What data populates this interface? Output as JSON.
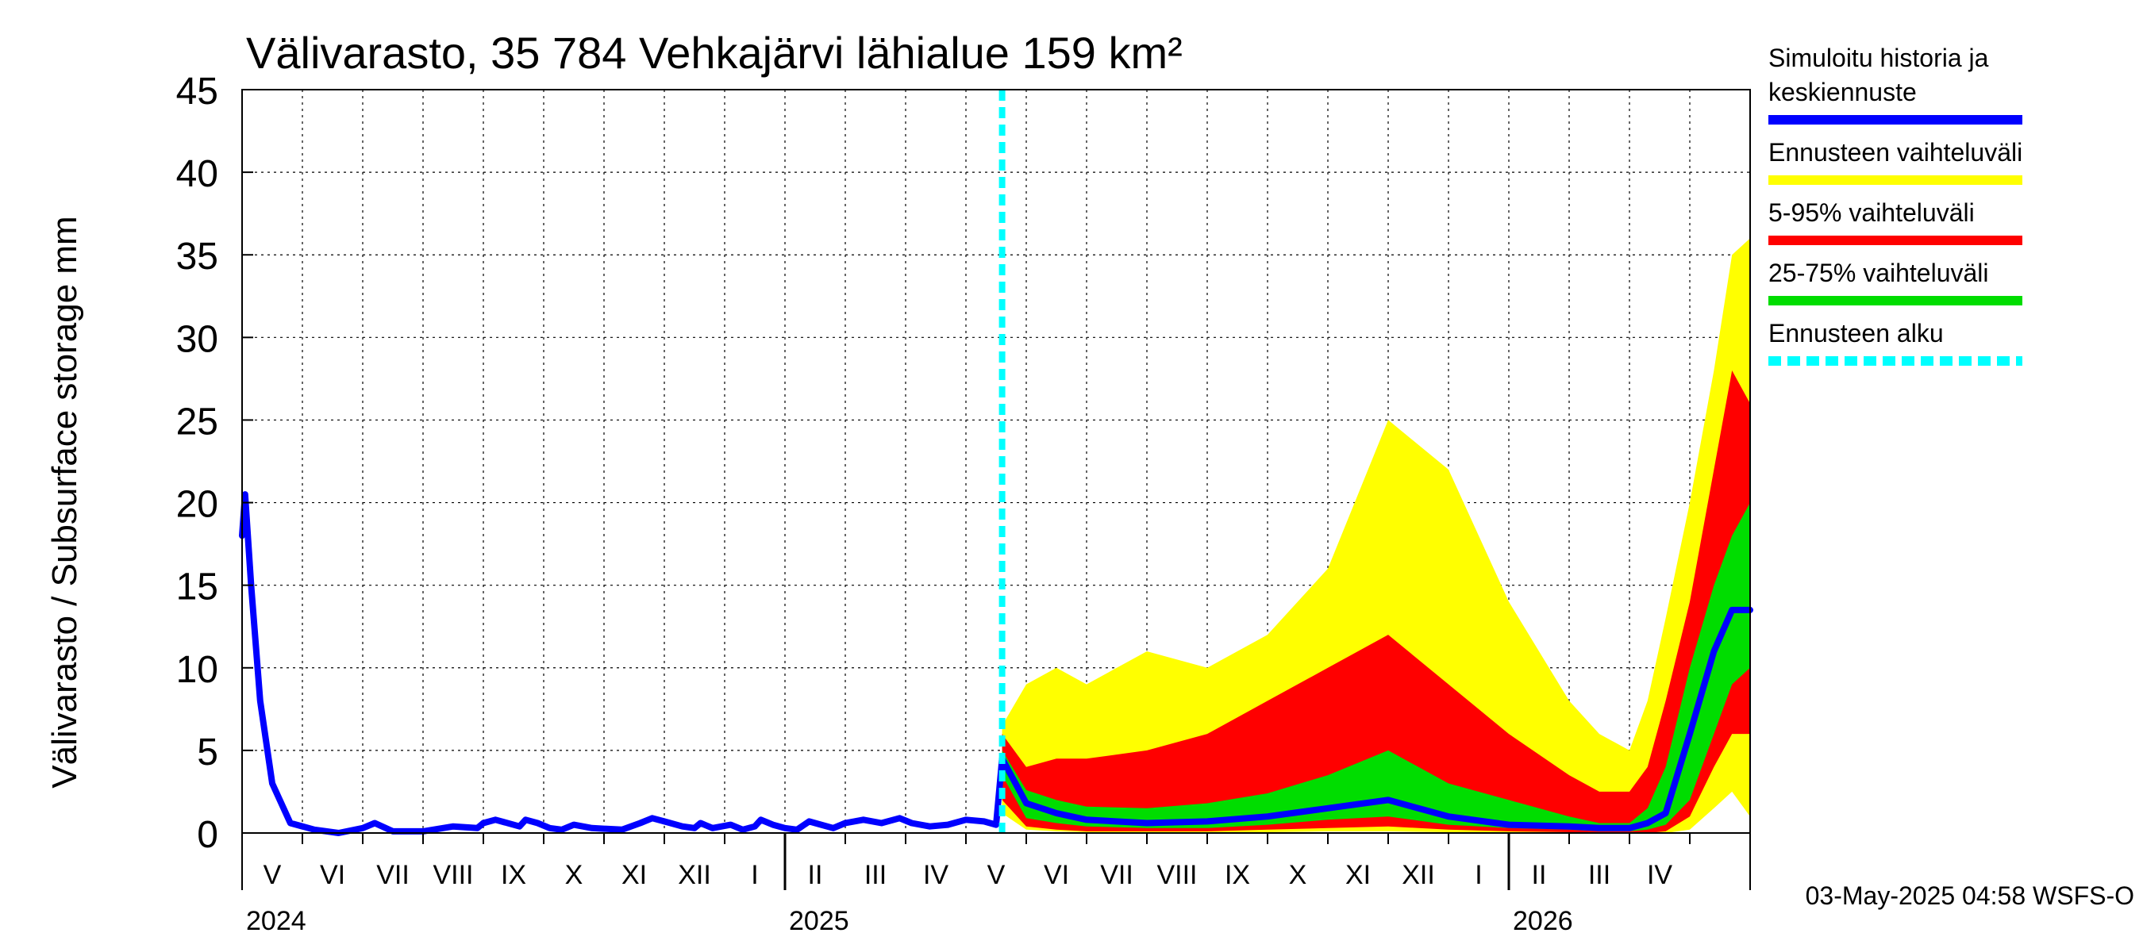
{
  "chart_data": {
    "type": "area",
    "title": "Välivarasto, 35 784 Vehkajärvi lähialue 159 km²",
    "ylabel": "Välivarasto / Subsurface storage  mm",
    "ylim": [
      0,
      45
    ],
    "yticks": [
      0,
      5,
      10,
      15,
      20,
      25,
      30,
      35,
      40,
      45
    ],
    "x_unit": "months since 2024-04-01",
    "xlim": [
      0,
      25
    ],
    "grid": true,
    "month_labels": [
      "V",
      "VI",
      "VII",
      "VIII",
      "IX",
      "X",
      "XI",
      "XII",
      "I",
      "II",
      "III",
      "IV",
      "V",
      "VI",
      "VII",
      "VIII",
      "IX",
      "X",
      "XI",
      "XII",
      "I",
      "II",
      "III",
      "IV"
    ],
    "year_labels": [
      {
        "label": "2024",
        "x": 0
      },
      {
        "label": "2025",
        "x": 9
      },
      {
        "label": "2026",
        "x": 21
      }
    ],
    "forecast_start": 12.6,
    "timestamp": "03-May-2025 04:58 WSFS-O",
    "colors": {
      "history": "#0000ff",
      "range": "#ffff00",
      "p5_95": "#ff0000",
      "p25_75": "#00dd00",
      "forecast_start": "#00ffff"
    },
    "legend": [
      {
        "id": "history",
        "label": "Simuloitu historia ja keskiennuste",
        "color": "#0000ff",
        "style": "solid"
      },
      {
        "id": "range",
        "label": "Ennusteen vaihteluväli",
        "color": "#ffff00",
        "style": "solid"
      },
      {
        "id": "p5_95",
        "label": "5-95% vaihteluväli",
        "color": "#ff0000",
        "style": "solid"
      },
      {
        "id": "p25_75",
        "label": "25-75% vaihteluväli",
        "color": "#00dd00",
        "style": "solid"
      },
      {
        "id": "forecast_start",
        "label": "Ennusteen alku",
        "color": "#00ffff",
        "style": "dashed"
      }
    ],
    "history": {
      "x": [
        0,
        0.05,
        0.15,
        0.3,
        0.5,
        0.8,
        1.2,
        1.6,
        2.0,
        2.2,
        2.5,
        3.0,
        3.5,
        3.9,
        4.0,
        4.2,
        4.6,
        4.7,
        4.9,
        5.1,
        5.3,
        5.5,
        5.8,
        6.3,
        6.6,
        6.8,
        7.0,
        7.3,
        7.5,
        7.6,
        7.8,
        8.1,
        8.3,
        8.5,
        8.6,
        8.8,
        9.0,
        9.2,
        9.4,
        9.6,
        9.8,
        10.0,
        10.3,
        10.6,
        10.9,
        11.1,
        11.4,
        11.7,
        12.0,
        12.3,
        12.5,
        12.6
      ],
      "y": [
        18,
        20.5,
        15,
        8,
        3,
        0.6,
        0.2,
        0,
        0.3,
        0.6,
        0.1,
        0.1,
        0.4,
        0.3,
        0.6,
        0.8,
        0.4,
        0.8,
        0.6,
        0.3,
        0.2,
        0.5,
        0.3,
        0.2,
        0.6,
        0.9,
        0.7,
        0.4,
        0.3,
        0.6,
        0.3,
        0.5,
        0.2,
        0.4,
        0.8,
        0.5,
        0.3,
        0.2,
        0.7,
        0.5,
        0.3,
        0.6,
        0.8,
        0.6,
        0.9,
        0.6,
        0.4,
        0.5,
        0.8,
        0.7,
        0.5,
        4.5
      ]
    },
    "forecast": {
      "x": [
        12.6,
        13.0,
        13.5,
        14,
        15,
        16,
        17,
        18,
        19,
        20,
        21,
        22,
        22.5,
        23,
        23.3,
        23.6,
        24,
        24.4,
        24.7,
        25
      ],
      "median": [
        4.5,
        1.8,
        1.2,
        0.8,
        0.6,
        0.7,
        1.0,
        1.5,
        2.0,
        1.0,
        0.5,
        0.4,
        0.3,
        0.3,
        0.6,
        1.2,
        6,
        11,
        13.5,
        13.5
      ],
      "p25": [
        3.5,
        0.9,
        0.6,
        0.4,
        0.3,
        0.3,
        0.5,
        0.8,
        1.0,
        0.5,
        0.3,
        0.2,
        0.1,
        0.1,
        0.2,
        0.5,
        2,
        6,
        9,
        10
      ],
      "p75": [
        5.0,
        2.6,
        2.0,
        1.6,
        1.5,
        1.8,
        2.4,
        3.5,
        5.0,
        3.0,
        2.0,
        1.0,
        0.6,
        0.6,
        1.5,
        4,
        10,
        15,
        18,
        20
      ],
      "p5": [
        2.0,
        0.4,
        0.2,
        0.1,
        0.1,
        0.1,
        0.2,
        0.3,
        0.4,
        0.2,
        0.1,
        0.05,
        0,
        0,
        0,
        0.1,
        1,
        4,
        6,
        6
      ],
      "p95": [
        6.0,
        4.0,
        4.5,
        4.5,
        5.0,
        6.0,
        8.0,
        10.0,
        12.0,
        9.0,
        6.0,
        3.5,
        2.5,
        2.5,
        4,
        8,
        14,
        22,
        28,
        26
      ],
      "min": [
        1.2,
        0.2,
        0.1,
        0.05,
        0,
        0,
        0.05,
        0.1,
        0.1,
        0.05,
        0,
        0,
        0,
        0,
        0,
        0,
        0.2,
        1.5,
        2.5,
        1
      ],
      "max": [
        6.5,
        9.0,
        10.0,
        9.0,
        11.0,
        10.0,
        12.0,
        16.0,
        25.0,
        22.0,
        14.0,
        8.0,
        6.0,
        5.0,
        8,
        13,
        20,
        28,
        35,
        36
      ]
    }
  }
}
